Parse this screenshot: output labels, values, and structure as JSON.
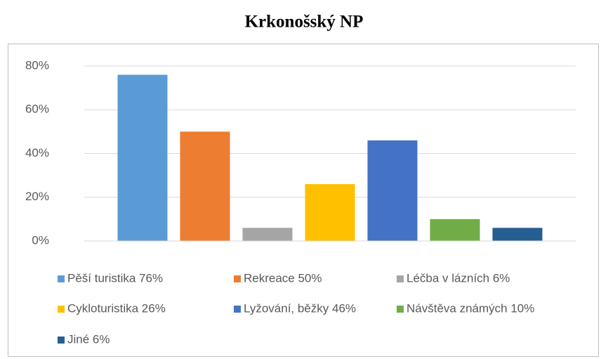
{
  "chart_data": {
    "type": "bar",
    "title": "Krkonošský NP",
    "categories": [
      null
    ],
    "series": [
      {
        "name": "Pěší turistika 76%",
        "color": "#5b9bd5",
        "values": [
          76
        ]
      },
      {
        "name": "Rekreace 50%",
        "color": "#ed7d31",
        "values": [
          50
        ]
      },
      {
        "name": "Léčba v lázních 6%",
        "color": "#a5a5a5",
        "values": [
          6
        ]
      },
      {
        "name": "Cykloturistika 26%",
        "color": "#ffc000",
        "values": [
          26
        ]
      },
      {
        "name": "Lyžování, běžky 46%",
        "color": "#4472c4",
        "values": [
          46
        ]
      },
      {
        "name": "Návštěva známých 10%",
        "color": "#70ad47",
        "values": [
          10
        ]
      },
      {
        "name": "Jiné 6%",
        "color": "#255e91",
        "values": [
          6
        ]
      }
    ],
    "ylim": [
      0,
      80
    ],
    "yticks": [
      {
        "value": 0,
        "label": "0%"
      },
      {
        "value": 20,
        "label": "20%"
      },
      {
        "value": 40,
        "label": "40%"
      },
      {
        "value": 60,
        "label": "60%"
      },
      {
        "value": 80,
        "label": "80%"
      }
    ],
    "grid": true,
    "legend": "bottom"
  }
}
